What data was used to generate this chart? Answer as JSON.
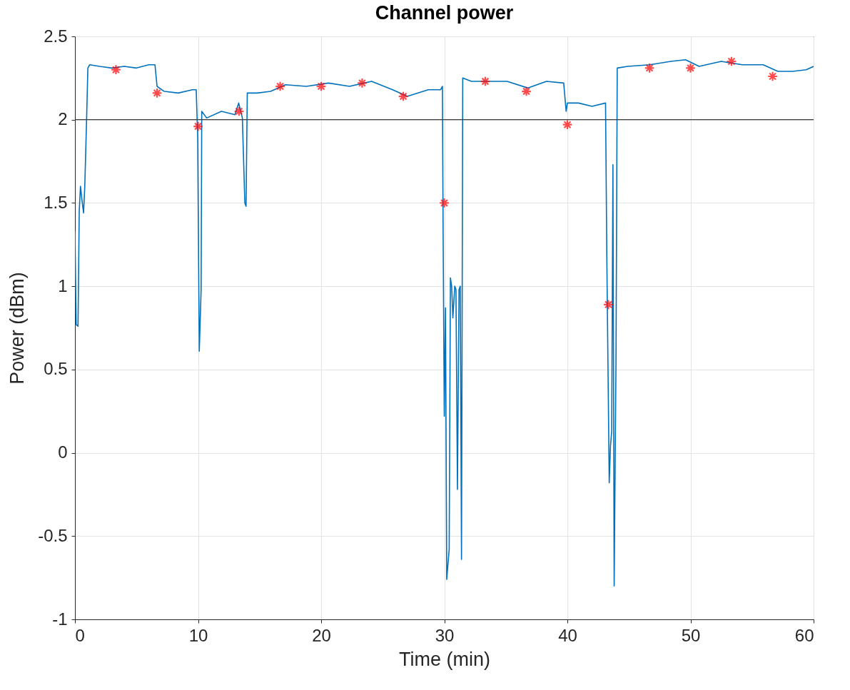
{
  "chart_data": {
    "type": "line",
    "title": "Channel power",
    "xlabel": "Time (min)",
    "ylabel": "Power (dBm)",
    "xlim": [
      0,
      60
    ],
    "xticks": [
      0,
      10,
      20,
      30,
      40,
      50,
      60
    ],
    "ylim": [
      -1,
      2.5
    ],
    "yticks": [
      -1,
      -0.5,
      0,
      0.5,
      1,
      1.5,
      2,
      2.5
    ],
    "grid": true,
    "ref_lines": [
      {
        "axis": "y",
        "value": 2,
        "color": "#404040"
      }
    ],
    "series": [
      {
        "color": "#0072bd",
        "marker": "none",
        "line_style": "solid",
        "x": [
          0,
          0.1,
          0.25,
          0.35,
          0.45,
          0.6,
          0.7,
          0.8,
          0.95,
          1.05,
          1.2,
          2,
          3,
          4,
          5,
          6,
          6.5,
          6.67,
          7.25,
          8.4,
          9.55,
          9.85,
          9.97,
          10.1,
          10.25,
          10.3,
          10.7,
          11.9,
          13.0,
          13.3,
          13.6,
          13.8,
          13.9,
          14.0,
          14.8,
          15.9,
          17.1,
          18.8,
          20.6,
          22.3,
          24.1,
          25.8,
          27.0,
          28.7,
          29.7,
          29.85,
          29.9,
          30.0,
          30.1,
          30.2,
          30.4,
          30.5,
          30.6,
          30.7,
          30.85,
          30.95,
          31.07,
          31.2,
          31.3,
          31.4,
          31.5,
          32.2,
          33.3,
          35.1,
          36.8,
          38.3,
          39.7,
          39.9,
          40.0,
          40.9,
          42.0,
          43.1,
          43.2,
          43.4,
          43.5,
          43.6,
          43.7,
          43.8,
          43.95,
          44.05,
          44.9,
          46.7,
          48.4,
          49.6,
          50.7,
          52.5,
          54.2,
          55.9,
          57.1,
          58.3,
          59.4,
          60
        ],
        "values": [
          1.33,
          0.77,
          0.76,
          1.45,
          1.6,
          1.5,
          1.44,
          1.6,
          2.01,
          2.31,
          2.33,
          2.32,
          2.31,
          2.32,
          2.31,
          2.33,
          2.33,
          2.2,
          2.17,
          2.16,
          2.18,
          2.18,
          1.9,
          0.61,
          0.98,
          2.05,
          2.01,
          2.05,
          2.03,
          2.1,
          2.01,
          1.5,
          1.48,
          2.16,
          2.16,
          2.17,
          2.21,
          2.2,
          2.22,
          2.2,
          2.23,
          2.18,
          2.14,
          2.18,
          2.18,
          2.2,
          1.41,
          0.22,
          0.87,
          -0.76,
          -0.58,
          1.05,
          1.0,
          0.81,
          1.0,
          0.98,
          -0.22,
          0.98,
          1.0,
          -0.64,
          2.25,
          2.23,
          2.23,
          2.23,
          2.19,
          2.23,
          2.22,
          2.05,
          2.1,
          2.1,
          2.08,
          2.1,
          1.2,
          -0.18,
          0.04,
          0.13,
          1.73,
          -0.8,
          0.56,
          2.31,
          2.32,
          2.33,
          2.35,
          2.36,
          2.32,
          2.35,
          2.33,
          2.33,
          2.29,
          2.29,
          2.3,
          2.32
        ]
      },
      {
        "type": "scatter",
        "marker": "cross",
        "color": "#ff0000",
        "x": [
          3.33,
          6.67,
          10,
          13.33,
          16.67,
          20,
          23.33,
          26.67,
          30,
          33.33,
          36.67,
          40,
          43.33,
          46.67,
          50,
          53.33,
          56.67
        ],
        "values": [
          2.3,
          2.16,
          1.96,
          2.05,
          2.2,
          2.2,
          2.22,
          2.14,
          1.5,
          2.23,
          2.17,
          1.97,
          0.89,
          2.31,
          2.31,
          2.35,
          2.26
        ]
      }
    ]
  }
}
